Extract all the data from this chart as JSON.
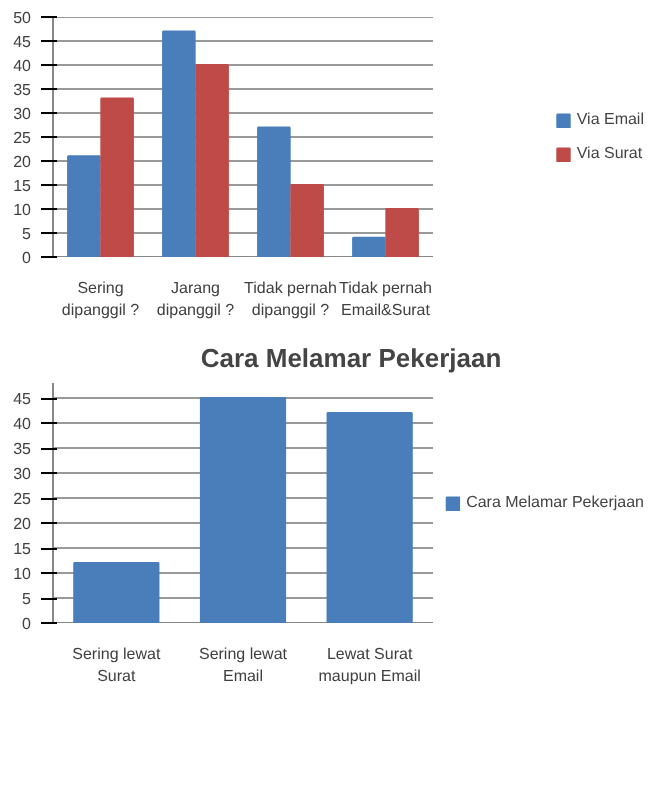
{
  "chart_data": [
    {
      "type": "bar",
      "categories": [
        "Sering dipanggil ?",
        "Jarang dipanggil ?",
        "Tidak pernah dipanggil ?",
        "Tidak pernah Email&Surat"
      ],
      "series": [
        {
          "name": "Via Email",
          "color": "#4a7ebb",
          "values": [
            21,
            47,
            27,
            4
          ]
        },
        {
          "name": "Via Surat",
          "color": "#be4b48",
          "values": [
            33,
            40,
            15,
            10
          ]
        }
      ],
      "ylim": [
        0,
        50
      ],
      "yticks": [
        0,
        5,
        10,
        15,
        20,
        25,
        30,
        35,
        40,
        45,
        50
      ],
      "grid": "y",
      "legend": "right"
    },
    {
      "type": "bar",
      "title": "Cara Melamar Pekerjaan",
      "categories": [
        "Sering lewat Surat",
        "Sering lewat Email",
        "Lewat Surat maupun Email"
      ],
      "series": [
        {
          "name": "Cara Melamar Pekerjaan",
          "color": "#4a7ebb",
          "values": [
            12,
            45,
            42
          ]
        }
      ],
      "ylim": [
        0,
        48
      ],
      "yticks": [
        0,
        5,
        10,
        15,
        20,
        25,
        30,
        35,
        40,
        45
      ],
      "grid": "y",
      "legend": "right"
    }
  ]
}
